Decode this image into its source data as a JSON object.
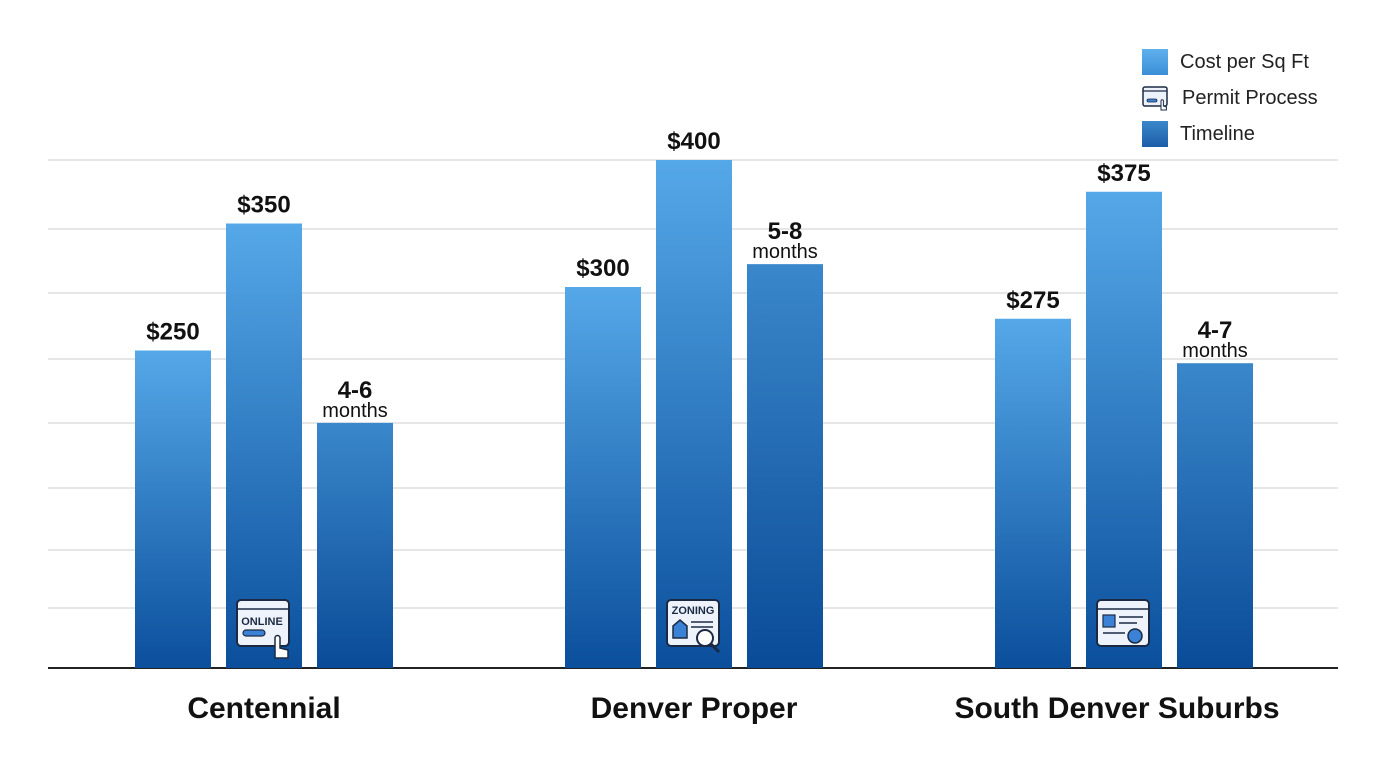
{
  "chart_data": {
    "type": "bar",
    "categories": [
      "Centennial",
      "Denver Proper",
      "South Denver Suburbs"
    ],
    "ylim": [
      0,
      400
    ],
    "grid": true,
    "legend_position": "top-right",
    "series": [
      {
        "name": "Cost per Sq Ft",
        "values": [
          250,
          300,
          275
        ],
        "labels": [
          "$250",
          "$300",
          "$275"
        ],
        "color": "#4a9fe0"
      },
      {
        "name": "Permit Process",
        "values": [
          350,
          400,
          375
        ],
        "labels": [
          "$350",
          "$400",
          "$375"
        ],
        "icons": [
          "online-permit-icon",
          "zoning-icon",
          "document-check-icon"
        ],
        "icon_text": [
          "ONLINE",
          "ZONING",
          ""
        ],
        "color": "#3b95dd"
      },
      {
        "name": "Timeline",
        "values": [
          193,
          318,
          240
        ],
        "labels": [
          [
            "4-6",
            "months"
          ],
          [
            "5-8",
            "months"
          ],
          [
            "4-7",
            "months"
          ]
        ],
        "color": "#2a73bb"
      }
    ]
  },
  "legend": [
    "Cost per Sq Ft",
    "Permit Process",
    "Timeline"
  ],
  "colors": {
    "bar_top": "#55a8e8",
    "bar_bottom": "#0b4f9c",
    "timeline_top": "#3a87cb",
    "grid": "#d8d8d8",
    "axis": "#222222"
  }
}
